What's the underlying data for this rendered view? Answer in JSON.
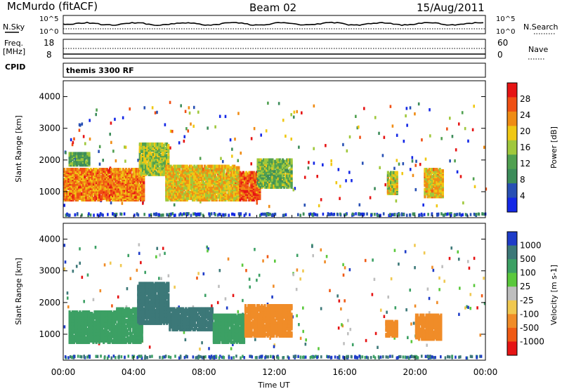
{
  "header": {
    "station": "McMurdo (fitACF)",
    "beam": "Beam 02",
    "date": "15/Aug/2011"
  },
  "noise_panel": {
    "left_label": "N.Sky",
    "right_label": "N.Search",
    "left_ticks": [
      "10^5",
      "10^0"
    ],
    "right_ticks": [
      "10^5",
      "10^0"
    ]
  },
  "freq_panel": {
    "left_label_top": "Freq.",
    "left_label_bottom": "[MHz]",
    "left_ticks": [
      "18",
      "8"
    ],
    "right_ticks": [
      "60",
      "0"
    ],
    "right_label": "Nave"
  },
  "cpid": {
    "label": "CPID",
    "value": "themis 3300 RF"
  },
  "colors": {
    "power_scale": [
      "#1428e6",
      "#2850b4",
      "#3c8c5a",
      "#50a050",
      "#a0c83c",
      "#f0c814",
      "#f08c14",
      "#f05014",
      "#e61414"
    ],
    "velocity_scale": [
      "#1e3cc8",
      "#3c7878",
      "#3ca064",
      "#5ac83c",
      "#bebebe",
      "#f0c850",
      "#f08c28",
      "#f05a14",
      "#e61414"
    ]
  },
  "chart_data": [
    {
      "type": "heatmap",
      "panel": "power",
      "ylabel": "Slant Range [km]",
      "colorbar_label": "Power [dB]",
      "colorbar_ticks": [
        "28",
        "24",
        "20",
        "16",
        "12",
        "8",
        "4"
      ],
      "ylim": [
        180,
        4500
      ],
      "yticks": [
        "4000",
        "3000",
        "2000",
        "1000"
      ],
      "xlim": [
        0,
        24
      ],
      "regions": [
        {
          "t0": 0.0,
          "t1": 4.6,
          "r0": 700,
          "r1": 1700,
          "level": 24
        },
        {
          "t0": 0.3,
          "t1": 1.5,
          "r0": 1800,
          "r1": 2200,
          "level": 12
        },
        {
          "t0": 4.3,
          "t1": 6.0,
          "r0": 1500,
          "r1": 2500,
          "level": 16
        },
        {
          "t0": 5.8,
          "t1": 10.0,
          "r0": 700,
          "r1": 1800,
          "level": 20
        },
        {
          "t0": 10.0,
          "t1": 11.2,
          "r0": 700,
          "r1": 1600,
          "level": 26
        },
        {
          "t0": 11.0,
          "t1": 13.0,
          "r0": 1100,
          "r1": 2000,
          "level": 14
        },
        {
          "t0": 18.4,
          "t1": 19.0,
          "r0": 900,
          "r1": 1600,
          "level": 18
        },
        {
          "t0": 20.5,
          "t1": 21.6,
          "r0": 800,
          "r1": 1700,
          "level": 20
        }
      ]
    },
    {
      "type": "heatmap",
      "panel": "velocity",
      "ylabel": "Slant Range [km]",
      "colorbar_label": "Velocity [m s-1]",
      "colorbar_ticks": [
        "1000",
        "500",
        "100",
        "25",
        "-25",
        "-100",
        "-500",
        "-1000"
      ],
      "ylim": [
        180,
        4500
      ],
      "yticks": [
        "4000",
        "3000",
        "2000",
        "1000"
      ],
      "xlim": [
        0,
        24
      ],
      "xticks": [
        "00:00",
        "04:00",
        "08:00",
        "12:00",
        "16:00",
        "20:00",
        "00:00"
      ],
      "xlabel": "Time UT",
      "regions": [
        {
          "t0": 0.3,
          "t1": 3.0,
          "r0": 700,
          "r1": 1700,
          "level": 300
        },
        {
          "t0": 3.0,
          "t1": 4.5,
          "r0": 700,
          "r1": 1800,
          "level": 200
        },
        {
          "t0": 4.2,
          "t1": 6.0,
          "r0": 1300,
          "r1": 2600,
          "level": 800
        },
        {
          "t0": 6.0,
          "t1": 8.5,
          "r0": 1100,
          "r1": 1800,
          "level": 900
        },
        {
          "t0": 8.5,
          "t1": 10.3,
          "r0": 700,
          "r1": 1600,
          "level": 300
        },
        {
          "t0": 10.3,
          "t1": 13.0,
          "r0": 900,
          "r1": 1900,
          "level": -300
        },
        {
          "t0": 18.3,
          "t1": 19.0,
          "r0": 900,
          "r1": 1400,
          "level": -300
        },
        {
          "t0": 20.0,
          "t1": 21.5,
          "r0": 800,
          "r1": 1600,
          "level": -300
        }
      ]
    }
  ]
}
